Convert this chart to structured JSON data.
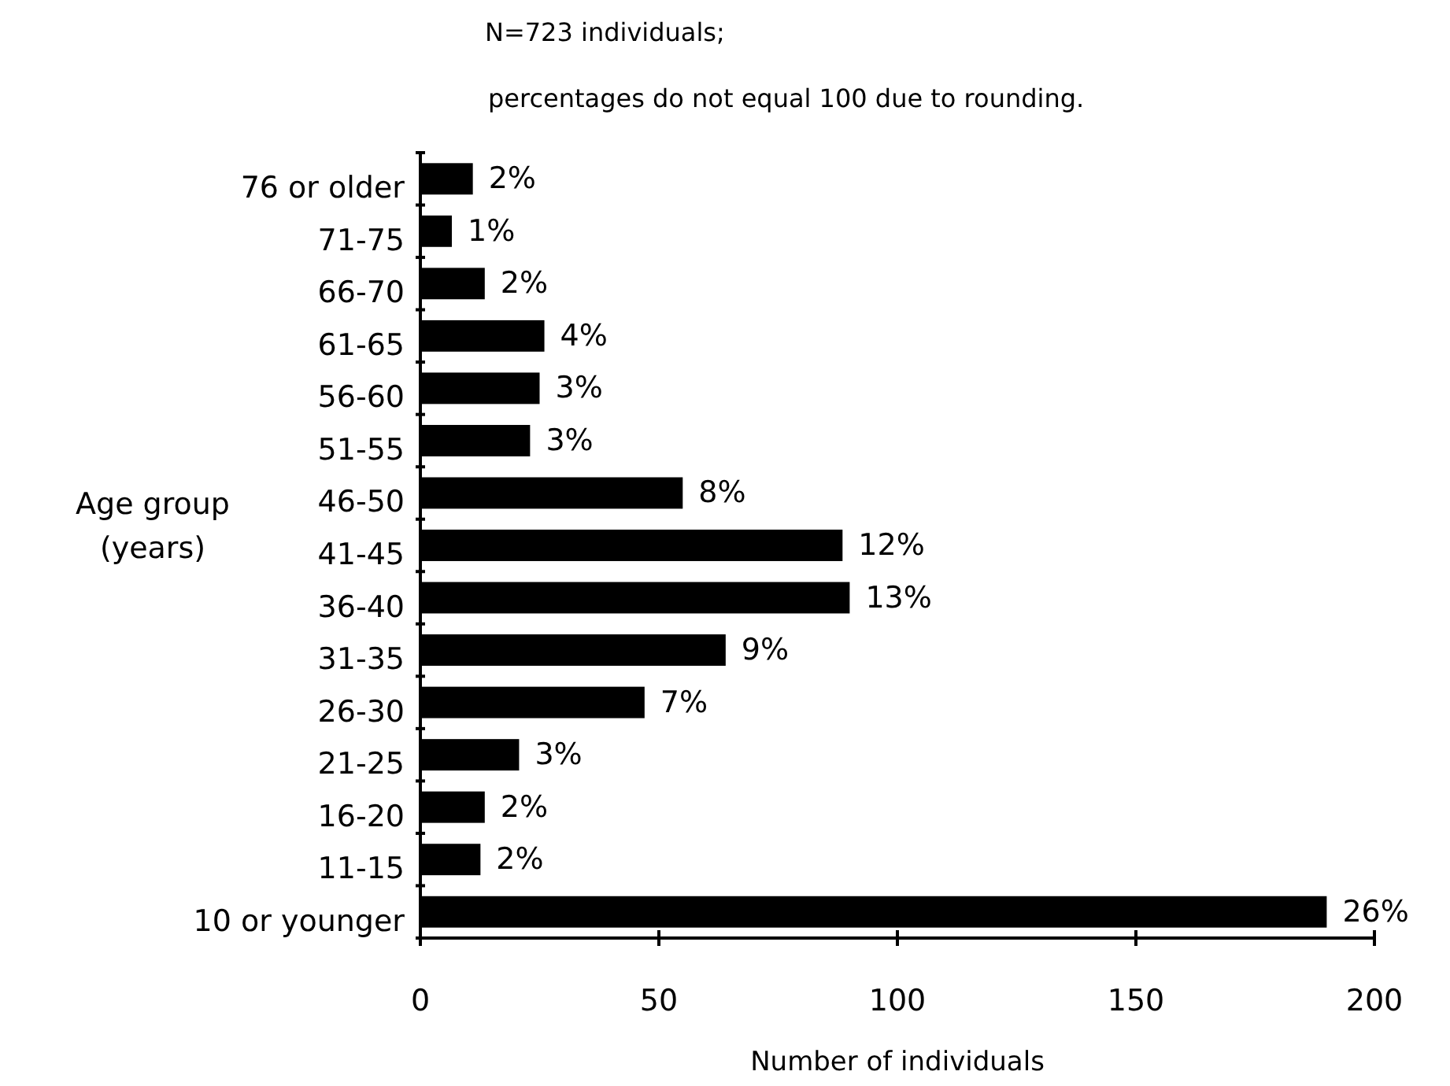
{
  "chart_data": {
    "type": "bar",
    "orientation": "horizontal",
    "xlabel": "Number of individuals",
    "ylabel": "Age group (years)",
    "annotations": [
      "N=723 individuals;",
      "percentages do not equal 100 due to rounding.",
      {
        "text": "2%",
        "x": 11,
        "y": "76 or older"
      },
      {
        "text": "1%",
        "x": 6.6,
        "y": "71-75"
      },
      {
        "text": "2%",
        "x": 13.5,
        "y": "66-70"
      },
      {
        "text": "4%",
        "x": 26,
        "y": "61-65"
      },
      {
        "text": "3%",
        "x": 25,
        "y": "56-60"
      },
      {
        "text": "3%",
        "x": 23,
        "y": "51-55"
      },
      {
        "text": "8%",
        "x": 55,
        "y": "46-50"
      },
      {
        "text": "12%",
        "x": 88.5,
        "y": "41-45"
      },
      {
        "text": "13%",
        "x": 90,
        "y": "36-40"
      },
      {
        "text": "9%",
        "x": 64,
        "y": "31-35"
      },
      {
        "text": "7%",
        "x": 47,
        "y": "26-30"
      },
      {
        "text": "3%",
        "x": 20.7,
        "y": "21-25"
      },
      {
        "text": "2%",
        "x": 13.5,
        "y": "16-20"
      },
      {
        "text": "2%",
        "x": 12.6,
        "y": "11-15"
      },
      {
        "text": "26%",
        "x": 190,
        "y": "10 or younger"
      }
    ],
    "categories": [
      "76 or older",
      "71-75",
      "66-70",
      "61-65",
      "56-60",
      "51-55",
      "46-50",
      "41-45",
      "36-40",
      "31-35",
      "26-30",
      "21-25",
      "16-20",
      "11-15",
      "10 or younger"
    ],
    "values": [
      11,
      6.6,
      13.5,
      26,
      25,
      23,
      55,
      88.5,
      90,
      64,
      47,
      20.7,
      13.5,
      12.6,
      190
    ],
    "color": "#000000",
    "xlim": [
      0,
      200
    ],
    "xticks": [
      0,
      50,
      100,
      150,
      200
    ],
    "grid": false
  }
}
